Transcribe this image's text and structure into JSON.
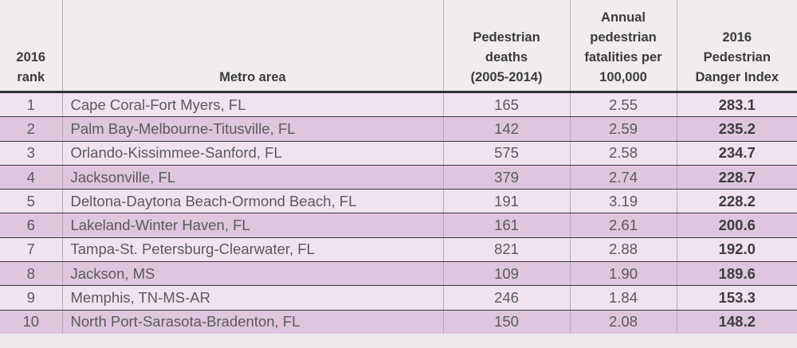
{
  "headers": {
    "rank": [
      "2016",
      "rank"
    ],
    "metro": [
      "Metro area"
    ],
    "deaths": [
      "Pedestrian",
      "deaths",
      "(2005-2014)"
    ],
    "rate": [
      "Annual",
      "pedestrian",
      "fatalities per",
      "100,000"
    ],
    "index": [
      "2016",
      "Pedestrian",
      "Danger Index"
    ]
  },
  "rows": [
    {
      "rank": "1",
      "metro": "Cape Coral-Fort Myers, FL",
      "deaths": "165",
      "rate": "2.55",
      "index": "283.1"
    },
    {
      "rank": "2",
      "metro": "Palm Bay-Melbourne-Titusville, FL",
      "deaths": "142",
      "rate": "2.59",
      "index": "235.2"
    },
    {
      "rank": "3",
      "metro": "Orlando-Kissimmee-Sanford, FL",
      "deaths": "575",
      "rate": "2.58",
      "index": "234.7"
    },
    {
      "rank": "4",
      "metro": "Jacksonville, FL",
      "deaths": "379",
      "rate": "2.74",
      "index": "228.7"
    },
    {
      "rank": "5",
      "metro": "Deltona-Daytona Beach-Ormond Beach, FL",
      "deaths": "191",
      "rate": "3.19",
      "index": "228.2"
    },
    {
      "rank": "6",
      "metro": "Lakeland-Winter Haven, FL",
      "deaths": "161",
      "rate": "2.61",
      "index": "200.6"
    },
    {
      "rank": "7",
      "metro": "Tampa-St. Petersburg-Clearwater, FL",
      "deaths": "821",
      "rate": "2.88",
      "index": "192.0"
    },
    {
      "rank": "8",
      "metro": "Jackson, MS",
      "deaths": "109",
      "rate": "1.90",
      "index": "189.6"
    },
    {
      "rank": "9",
      "metro": "Memphis, TN-MS-AR",
      "deaths": "246",
      "rate": "1.84",
      "index": "153.3"
    },
    {
      "rank": "10",
      "metro": "North Port-Sarasota-Bradenton, FL",
      "deaths": "150",
      "rate": "2.08",
      "index": "148.2"
    }
  ]
}
